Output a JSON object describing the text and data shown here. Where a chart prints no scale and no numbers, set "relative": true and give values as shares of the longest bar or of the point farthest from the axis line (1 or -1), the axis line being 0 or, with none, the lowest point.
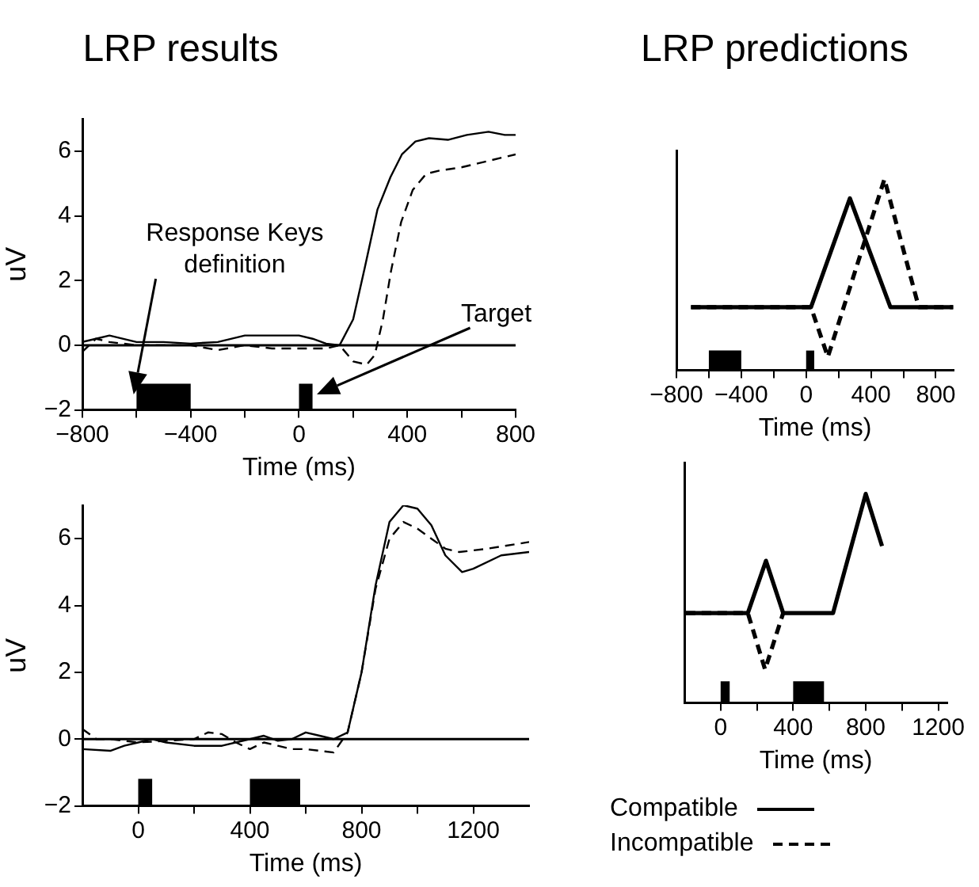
{
  "chart_data": [
    {
      "type": "line",
      "title": "LRP results",
      "xlabel": "Time (ms)",
      "ylabel": "uV",
      "xlim": [
        -800,
        800
      ],
      "xticks": [
        -800,
        {
          "value": -600,
          "label": null
        },
        -400,
        {
          "value": -200,
          "label": null
        },
        0,
        {
          "value": 200,
          "label": null
        },
        400,
        {
          "value": 600,
          "label": null
        },
        800
      ],
      "ylim": [
        -2,
        7
      ],
      "yticks": [
        -2,
        0,
        2,
        4,
        6
      ],
      "series": [
        {
          "color": "#000000",
          "line_style": "solid",
          "x": [
            -800,
            -750,
            -700,
            -600,
            -500,
            -400,
            -300,
            -200,
            -100,
            0,
            50,
            100,
            150,
            200,
            243,
            290,
            338,
            380,
            430,
            480,
            550,
            620,
            700,
            760,
            800
          ],
          "values": [
            0.1,
            0.2,
            0.3,
            0.1,
            0.1,
            0.05,
            0.1,
            0.3,
            0.3,
            0.3,
            0.2,
            0.05,
            0,
            0.8,
            2.4,
            4.2,
            5.2,
            5.9,
            6.3,
            6.4,
            6.35,
            6.5,
            6.6,
            6.5,
            6.5
          ]
        },
        {
          "color": "#000000",
          "line_style": "dashed",
          "x": [
            -800,
            -750,
            -700,
            -600,
            -400,
            -300,
            -200,
            -100,
            0,
            100,
            150,
            200,
            250,
            280,
            310,
            340,
            377,
            420,
            470,
            520,
            600,
            700,
            800
          ],
          "values": [
            -0.2,
            0.2,
            0.1,
            0,
            0,
            -0.15,
            0,
            -0.1,
            -0.1,
            -0.1,
            0,
            -0.5,
            -0.6,
            -0.3,
            0.8,
            2.3,
            3.8,
            4.8,
            5.3,
            5.4,
            5.5,
            5.7,
            5.9
          ]
        }
      ],
      "ref_lines": [
        {
          "axis": "y",
          "value": 0,
          "color": "#000000"
        }
      ],
      "bands": [
        {
          "axis": "x",
          "from": -600,
          "to": -400,
          "color": "#000000"
        },
        {
          "axis": "x",
          "from": 0,
          "to": 50,
          "color": "#000000"
        }
      ],
      "annotations": [
        "Response Keys definition",
        "Target"
      ]
    },
    {
      "type": "line",
      "xlabel": "Time (ms)",
      "ylabel": "uV",
      "xlim": [
        -200,
        1400
      ],
      "xticks": [
        0,
        {
          "value": 200,
          "label": null
        },
        400,
        {
          "value": 600,
          "label": null
        },
        800,
        {
          "value": 1000,
          "label": null
        },
        1200
      ],
      "ylim": [
        -2,
        7
      ],
      "yticks": [
        -2,
        0,
        2,
        4,
        6
      ],
      "series": [
        {
          "color": "#000000",
          "line_style": "solid",
          "x": [
            -200,
            -100,
            -50,
            0,
            50,
            100,
            200,
            300,
            400,
            450,
            500,
            550,
            600,
            650,
            700,
            750,
            800,
            850,
            900,
            950,
            1000,
            1050,
            1100,
            1160,
            1200,
            1300,
            1400
          ],
          "values": [
            -0.3,
            -0.35,
            -0.2,
            -0.1,
            0,
            -0.1,
            -0.2,
            -0.2,
            0,
            0.1,
            -0.05,
            0,
            0.2,
            0.1,
            0,
            0.2,
            2.0,
            4.6,
            6.5,
            7.0,
            6.9,
            6.4,
            5.5,
            5.0,
            5.1,
            5.5,
            5.6
          ]
        },
        {
          "color": "#000000",
          "line_style": "dashed",
          "x": [
            -200,
            -150,
            -100,
            0,
            100,
            200,
            250,
            300,
            350,
            400,
            450,
            500,
            550,
            600,
            700,
            750,
            800,
            850,
            900,
            950,
            1000,
            1050,
            1100,
            1150,
            1250,
            1400
          ],
          "values": [
            0.3,
            0,
            0,
            -0.1,
            -0.05,
            0,
            0.2,
            0.15,
            -0.1,
            -0.3,
            -0.1,
            -0.2,
            -0.3,
            -0.3,
            -0.4,
            0.2,
            2.0,
            4.5,
            6.0,
            6.5,
            6.3,
            6.0,
            5.7,
            5.6,
            5.7,
            5.9
          ]
        }
      ],
      "ref_lines": [
        {
          "axis": "y",
          "value": 0,
          "color": "#000000"
        }
      ],
      "bands": [
        {
          "axis": "x",
          "from": 0,
          "to": 50,
          "color": "#000000"
        },
        {
          "axis": "x",
          "from": 400,
          "to": 580,
          "color": "#000000"
        }
      ]
    },
    {
      "type": "line",
      "title": "LRP predictions",
      "xlabel": "Time (ms)",
      "relative": true,
      "xlim": [
        -800,
        910
      ],
      "xticks": [
        -800,
        {
          "value": -600,
          "label": null
        },
        -400,
        {
          "value": -200,
          "label": null
        },
        0,
        {
          "value": 200,
          "label": null
        },
        400,
        {
          "value": 600,
          "label": null
        },
        800
      ],
      "series": [
        {
          "color": "#000000",
          "line_style": "solid",
          "x": [
            -710,
            30,
            270,
            520,
            907
          ],
          "values": [
            0.33,
            0.33,
            0.9,
            0.33,
            0.33
          ]
        },
        {
          "color": "#000000",
          "line_style": "dashed",
          "x": [
            -710,
            30,
            134,
            483,
            695,
            907
          ],
          "values": [
            0.33,
            0.33,
            0.07,
            1,
            0.33,
            0.33
          ]
        }
      ],
      "bands": [
        {
          "axis": "x",
          "from": -600,
          "to": -400,
          "color": "#000000"
        },
        {
          "axis": "x",
          "from": 0,
          "to": 50,
          "color": "#000000"
        }
      ]
    },
    {
      "type": "line",
      "xlabel": "Time (ms)",
      "relative": true,
      "legend": "bottom",
      "xlim": [
        -200,
        1250
      ],
      "xticks": [
        0,
        {
          "value": 200,
          "label": null
        },
        400,
        {
          "value": 600,
          "label": null
        },
        800,
        {
          "value": 1000,
          "label": null
        },
        1200
      ],
      "series": [
        {
          "name": "Compatible",
          "color": "#000000",
          "line_style": "solid",
          "x": [
            -192,
            150,
            250,
            345,
            620,
            800,
            890
          ],
          "values": [
            0.43,
            0.43,
            0.68,
            0.43,
            0.43,
            1,
            0.75
          ]
        },
        {
          "name": "Incompatible",
          "color": "#000000",
          "line_style": "dashed",
          "x": [
            -192,
            150,
            245,
            345
          ],
          "values": [
            0.43,
            0.43,
            0.16,
            0.43
          ]
        }
      ],
      "bands": [
        {
          "axis": "x",
          "from": 0,
          "to": 50,
          "color": "#000000"
        },
        {
          "axis": "x",
          "from": 400,
          "to": 570,
          "color": "#000000"
        }
      ]
    }
  ]
}
